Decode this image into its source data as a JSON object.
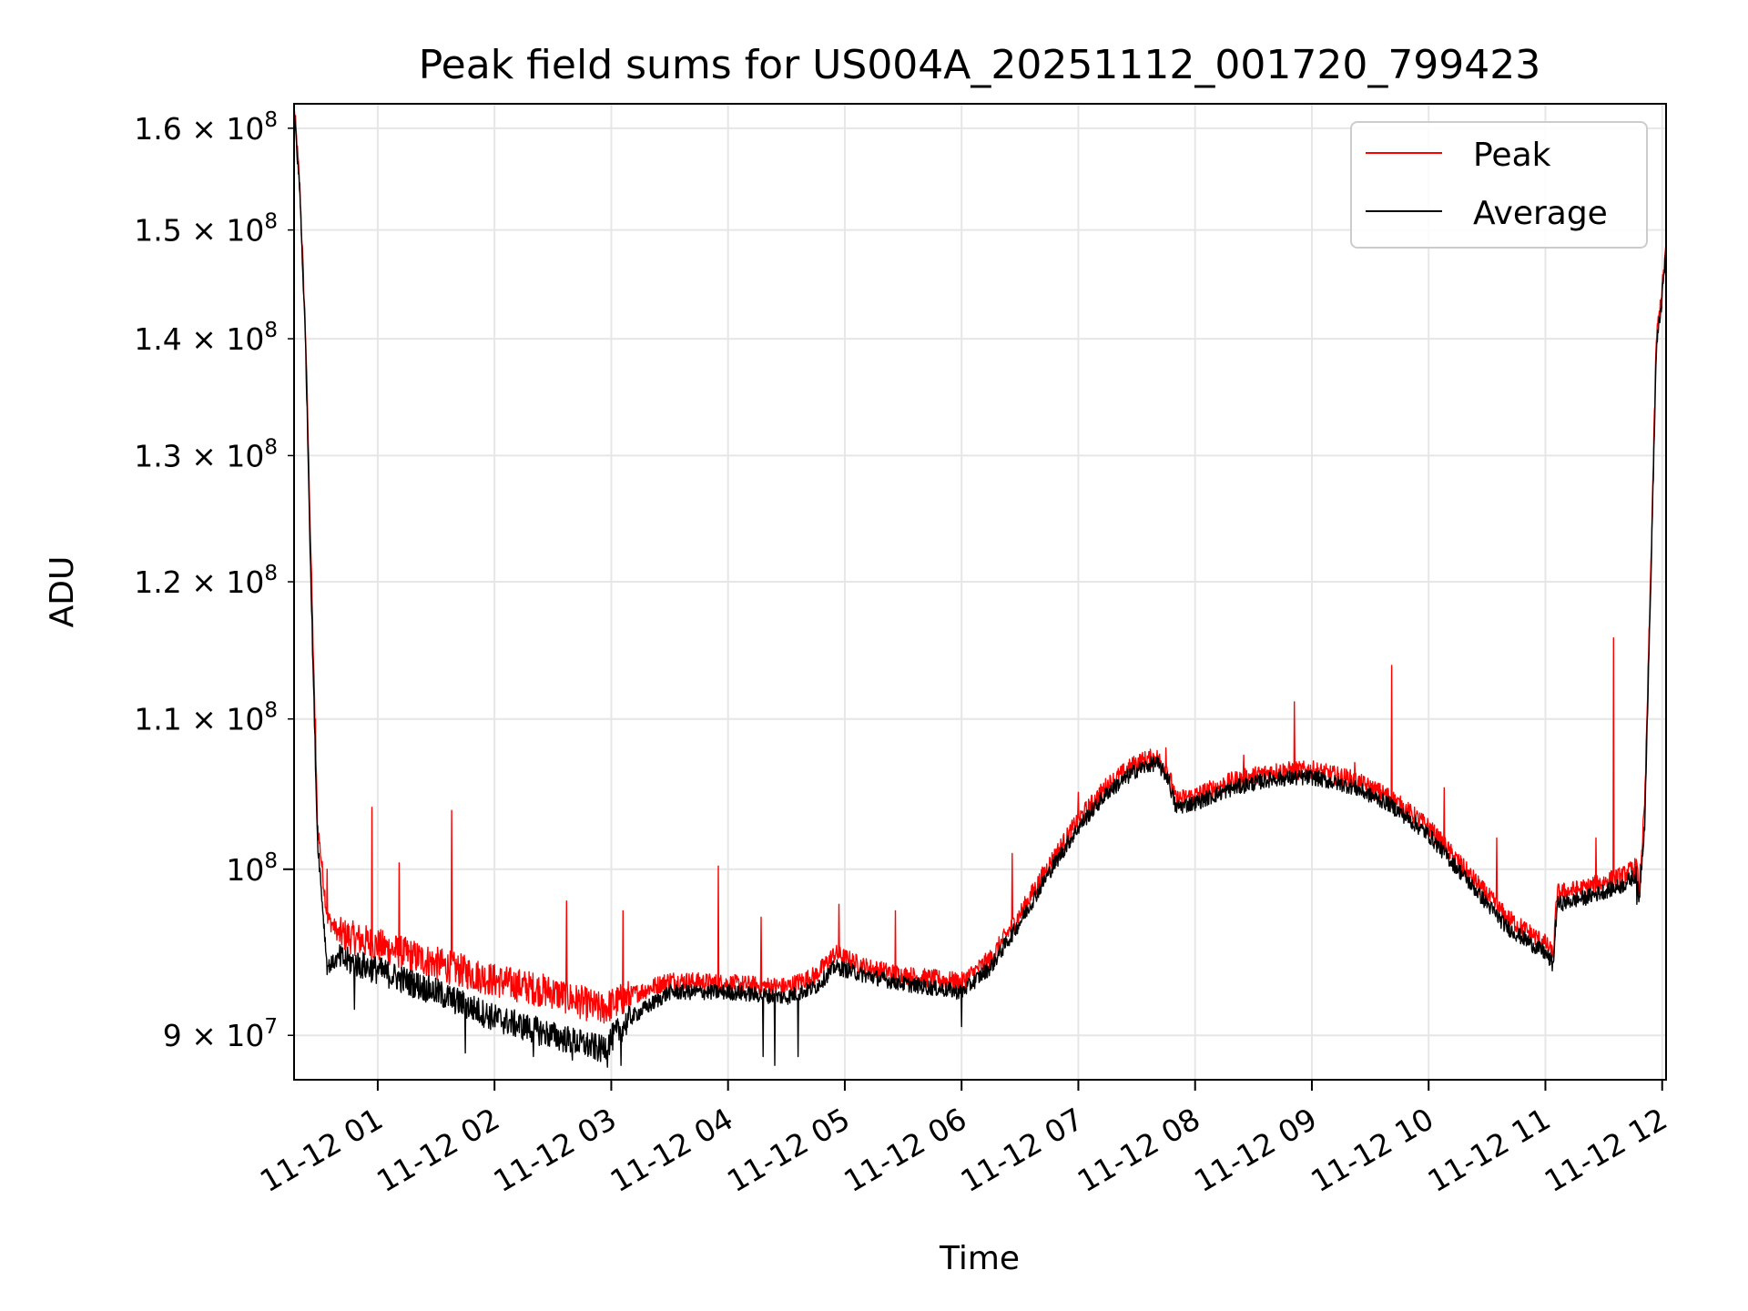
{
  "chart_data": {
    "type": "line",
    "title": "Peak field sums for US004A_20251112_001720_799423",
    "xlabel": "Time",
    "ylabel": "ADU",
    "y_scale": "log",
    "ylim": [
      87500000,
      162500000
    ],
    "xlim": [
      "11-12 00:17",
      "11-12 12:02"
    ],
    "grid": true,
    "legend_position": "top-right",
    "x_ticks": [
      {
        "t": "11-12 01:00",
        "label": "11-12 01"
      },
      {
        "t": "11-12 02:00",
        "label": "11-12 02"
      },
      {
        "t": "11-12 03:00",
        "label": "11-12 03"
      },
      {
        "t": "11-12 04:00",
        "label": "11-12 04"
      },
      {
        "t": "11-12 05:00",
        "label": "11-12 05"
      },
      {
        "t": "11-12 06:00",
        "label": "11-12 06"
      },
      {
        "t": "11-12 07:00",
        "label": "11-12 07"
      },
      {
        "t": "11-12 08:00",
        "label": "11-12 08"
      },
      {
        "t": "11-12 09:00",
        "label": "11-12 09"
      },
      {
        "t": "11-12 10:00",
        "label": "11-12 10"
      },
      {
        "t": "11-12 11:00",
        "label": "11-12 11"
      },
      {
        "t": "11-12 12:00",
        "label": "11-12 12"
      }
    ],
    "y_ticks": [
      {
        "value": 90000000,
        "mantissa": "9",
        "exp": "7",
        "major": false
      },
      {
        "value": 100000000,
        "mantissa": "",
        "exp": "8",
        "major": true
      },
      {
        "value": 110000000,
        "mantissa": "1.1",
        "exp": "8",
        "major": false
      },
      {
        "value": 120000000,
        "mantissa": "1.2",
        "exp": "8",
        "major": false
      },
      {
        "value": 130000000,
        "mantissa": "1.3",
        "exp": "8",
        "major": false
      },
      {
        "value": 140000000,
        "mantissa": "1.4",
        "exp": "8",
        "major": false
      },
      {
        "value": 150000000,
        "mantissa": "1.5",
        "exp": "8",
        "major": false
      },
      {
        "value": 160000000,
        "mantissa": "1.6",
        "exp": "8",
        "major": false
      }
    ],
    "series": [
      {
        "name": "Peak",
        "color": "#ff0000",
        "points": [
          [
            "11-12 00:17",
            162500000
          ],
          [
            "11-12 00:20",
            154000000
          ],
          [
            "11-12 00:23",
            140000000
          ],
          [
            "11-12 00:26",
            120000000
          ],
          [
            "11-12 00:29",
            103000000
          ],
          [
            "11-12 00:34",
            97000000
          ],
          [
            "11-12 00:40",
            96000000
          ],
          [
            "11-12 01:00",
            95300000
          ],
          [
            "11-12 01:30",
            94200000
          ],
          [
            "11-12 02:00",
            93200000
          ],
          [
            "11-12 02:30",
            92500000
          ],
          [
            "11-12 02:55",
            91500000
          ],
          [
            "11-12 03:10",
            92300000
          ],
          [
            "11-12 03:30",
            93200000
          ],
          [
            "11-12 04:00",
            93000000
          ],
          [
            "11-12 04:30",
            92800000
          ],
          [
            "11-12 04:45",
            93500000
          ],
          [
            "11-12 04:55",
            94800000
          ],
          [
            "11-12 05:10",
            94000000
          ],
          [
            "11-12 05:30",
            93500000
          ],
          [
            "11-12 06:00",
            93100000
          ],
          [
            "11-12 06:15",
            94500000
          ],
          [
            "11-12 06:30",
            97200000
          ],
          [
            "11-12 06:45",
            100300000
          ],
          [
            "11-12 07:00",
            103200000
          ],
          [
            "11-12 07:15",
            105500000
          ],
          [
            "11-12 07:30",
            107000000
          ],
          [
            "11-12 07:40",
            107400000
          ],
          [
            "11-12 07:46",
            106500000
          ],
          [
            "11-12 07:50",
            104500000
          ],
          [
            "11-12 08:00",
            104800000
          ],
          [
            "11-12 08:20",
            105800000
          ],
          [
            "11-12 08:40",
            106400000
          ],
          [
            "11-12 09:00",
            106500000
          ],
          [
            "11-12 09:20",
            105900000
          ],
          [
            "11-12 09:40",
            104700000
          ],
          [
            "11-12 10:00",
            102700000
          ],
          [
            "11-12 10:20",
            99800000
          ],
          [
            "11-12 10:40",
            97000000
          ],
          [
            "11-12 11:00",
            95400000
          ],
          [
            "11-12 11:04",
            94700000
          ],
          [
            "11-12 11:06",
            98500000
          ],
          [
            "11-12 11:20",
            98800000
          ],
          [
            "11-12 11:40",
            99600000
          ],
          [
            "11-12 11:47",
            100200000
          ],
          [
            "11-12 11:48",
            98500000
          ],
          [
            "11-12 11:51",
            104000000
          ],
          [
            "11-12 11:54",
            120000000
          ],
          [
            "11-12 11:57",
            140000000
          ],
          [
            "11-12 12:00",
            144500000
          ],
          [
            "11-12 12:02",
            148500000
          ]
        ],
        "spikes": [
          [
            "11-12 00:28",
            110000000
          ],
          [
            "11-12 00:34",
            100000000
          ],
          [
            "11-12 00:57",
            104000000
          ],
          [
            "11-12 01:11",
            100400000
          ],
          [
            "11-12 01:38",
            103800000
          ],
          [
            "11-12 02:37",
            98000000
          ],
          [
            "11-12 03:06",
            97400000
          ],
          [
            "11-12 03:55",
            100200000
          ],
          [
            "11-12 04:17",
            97000000
          ],
          [
            "11-12 04:57",
            97800000
          ],
          [
            "11-12 05:26",
            97400000
          ],
          [
            "11-12 06:26",
            101000000
          ],
          [
            "11-12 07:00",
            105000000
          ],
          [
            "11-12 07:45",
            108000000
          ],
          [
            "11-12 08:25",
            107500000
          ],
          [
            "11-12 08:51",
            111200000
          ],
          [
            "11-12 09:22",
            107000000
          ],
          [
            "11-12 09:41",
            113800000
          ],
          [
            "11-12 10:08",
            105300000
          ],
          [
            "11-12 10:35",
            102000000
          ],
          [
            "11-12 11:35",
            115800000
          ],
          [
            "11-12 11:26",
            102000000
          ]
        ]
      },
      {
        "name": "Average",
        "color": "#000000",
        "points": [
          [
            "11-12 00:17",
            162000000
          ],
          [
            "11-12 00:20",
            153500000
          ],
          [
            "11-12 00:23",
            139000000
          ],
          [
            "11-12 00:26",
            118000000
          ],
          [
            "11-12 00:29",
            102000000
          ],
          [
            "11-12 00:34",
            94000000
          ],
          [
            "11-12 00:40",
            94500000
          ],
          [
            "11-12 01:00",
            93800000
          ],
          [
            "11-12 01:30",
            92500000
          ],
          [
            "11-12 02:00",
            91000000
          ],
          [
            "11-12 02:30",
            90000000
          ],
          [
            "11-12 02:55",
            89200000
          ],
          [
            "11-12 03:10",
            91000000
          ],
          [
            "11-12 03:30",
            92500000
          ],
          [
            "11-12 04:00",
            92500000
          ],
          [
            "11-12 04:30",
            92200000
          ],
          [
            "11-12 04:45",
            92800000
          ],
          [
            "11-12 04:55",
            94000000
          ],
          [
            "11-12 05:10",
            93500000
          ],
          [
            "11-12 05:30",
            93000000
          ],
          [
            "11-12 06:00",
            92500000
          ],
          [
            "11-12 06:15",
            94000000
          ],
          [
            "11-12 06:30",
            96700000
          ],
          [
            "11-12 06:45",
            99800000
          ],
          [
            "11-12 07:00",
            102700000
          ],
          [
            "11-12 07:15",
            105000000
          ],
          [
            "11-12 07:30",
            106500000
          ],
          [
            "11-12 07:40",
            107000000
          ],
          [
            "11-12 07:46",
            106000000
          ],
          [
            "11-12 07:50",
            104000000
          ],
          [
            "11-12 08:00",
            104300000
          ],
          [
            "11-12 08:20",
            105300000
          ],
          [
            "11-12 08:40",
            105900000
          ],
          [
            "11-12 09:00",
            106000000
          ],
          [
            "11-12 09:20",
            105400000
          ],
          [
            "11-12 09:40",
            104200000
          ],
          [
            "11-12 10:00",
            102200000
          ],
          [
            "11-12 10:20",
            99300000
          ],
          [
            "11-12 10:40",
            96400000
          ],
          [
            "11-12 11:00",
            94800000
          ],
          [
            "11-12 11:04",
            94100000
          ],
          [
            "11-12 11:06",
            97800000
          ],
          [
            "11-12 11:20",
            98200000
          ],
          [
            "11-12 11:40",
            99000000
          ],
          [
            "11-12 11:47",
            99700000
          ],
          [
            "11-12 11:48",
            97800000
          ],
          [
            "11-12 11:51",
            103000000
          ],
          [
            "11-12 11:54",
            119000000
          ],
          [
            "11-12 11:57",
            139000000
          ],
          [
            "11-12 12:00",
            143800000
          ],
          [
            "11-12 12:02",
            148000000
          ]
        ],
        "dips": [
          [
            "11-12 00:48",
            91500000
          ],
          [
            "11-12 01:45",
            89000000
          ],
          [
            "11-12 02:20",
            88800000
          ],
          [
            "11-12 02:40",
            88600000
          ],
          [
            "11-12 02:58",
            88200000
          ],
          [
            "11-12 03:05",
            88300000
          ],
          [
            "11-12 04:18",
            88800000
          ],
          [
            "11-12 04:24",
            88300000
          ],
          [
            "11-12 04:36",
            88800000
          ],
          [
            "11-12 06:00",
            90500000
          ],
          [
            "11-12 11:47",
            97800000
          ]
        ]
      }
    ]
  }
}
